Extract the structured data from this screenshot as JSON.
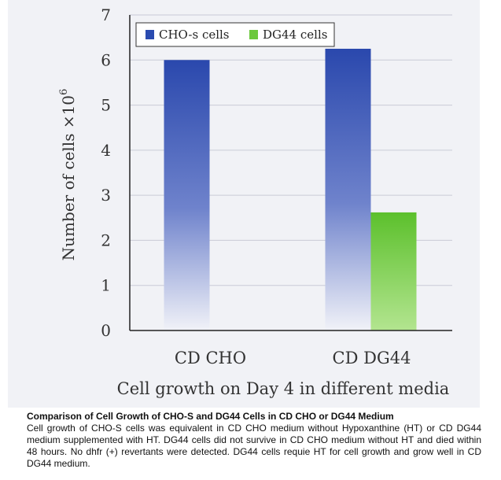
{
  "chart_data": {
    "type": "bar",
    "categories": [
      "CD CHO",
      "CD DG44"
    ],
    "series": [
      {
        "name": "CHO-s cells",
        "color": "#2a4bb0",
        "values": [
          6.0,
          6.25
        ]
      },
      {
        "name": "DG44 cells",
        "color": "#6cc83c",
        "values": [
          null,
          2.62
        ]
      }
    ],
    "title": "",
    "xlabel": "Cell growth on Day 4 in different media",
    "ylabel_main": "Number of cells ×10",
    "ylabel_exp": "6",
    "ylim": [
      0,
      7
    ],
    "yticks": [
      "0",
      "1",
      "2",
      "3",
      "4",
      "5",
      "6",
      "7"
    ],
    "grid": true,
    "legend_position": "top-left"
  },
  "caption": {
    "title": "Comparison of Cell Growth of CHO-S and DG44 Cells in CD CHO or DG44 Medium",
    "body": "Cell growth of CHO-S cells was equivalent in CD CHO medium without Hypoxanthine (HT) or CD DG44 medium supplemented with HT. DG44 cells did not survive in CD CHO medium without HT and died within 48 hours. No dhfr (+) revertants were detected. DG44 cells requie HT for cell growth and grow well in CD DG44 medium."
  }
}
